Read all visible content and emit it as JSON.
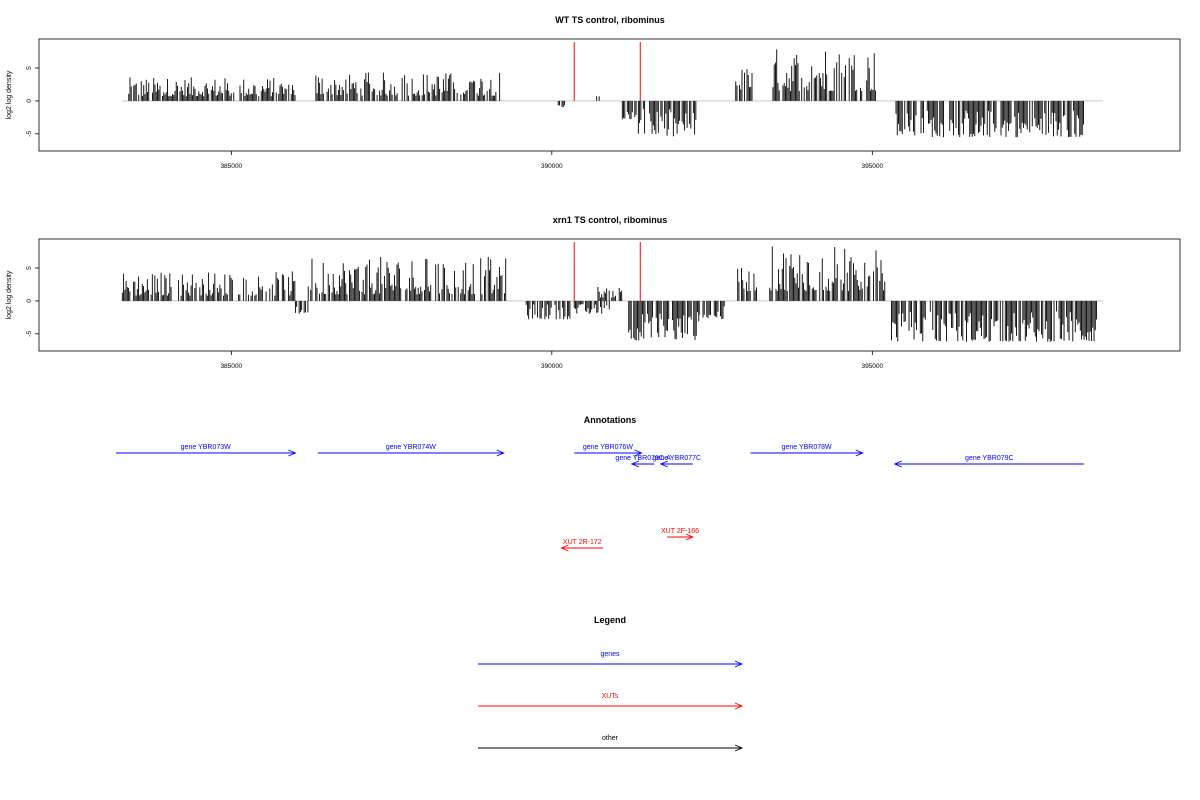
{
  "colors": {
    "gene": "#0000ff",
    "xut": "#ff0000",
    "other": "#000000",
    "bars": "#000000",
    "marker": "#ff0000",
    "baseline": "#bfbfbf"
  },
  "chart_data": [
    {
      "type": "bar",
      "title": "WT TS control, ribominus",
      "ylabel": "log2 log density",
      "xlim": [
        382000,
        399800
      ],
      "ylim": [
        -7,
        8.8
      ],
      "xticks": [
        385000,
        390000,
        395000
      ],
      "yticks": [
        -5,
        0,
        5
      ],
      "markers": [
        390350,
        391380
      ],
      "segments": [
        {
          "from": 383400,
          "to": 386000,
          "min": 0.7,
          "max": 3.6,
          "sign": 1
        },
        {
          "from": 386300,
          "to": 389200,
          "min": 0.8,
          "max": 4.4,
          "sign": 1
        },
        {
          "from": 390100,
          "to": 390200,
          "min": -1.0,
          "max": -0.6,
          "sign": -1
        },
        {
          "from": 390700,
          "to": 390750,
          "min": 0.6,
          "max": 0.9,
          "sign": 1
        },
        {
          "from": 391100,
          "to": 391350,
          "min": -2.8,
          "max": -1.2,
          "sign": -1
        },
        {
          "from": 391350,
          "to": 392250,
          "min": -5.5,
          "max": -1.2,
          "sign": -1
        },
        {
          "from": 392850,
          "to": 393150,
          "min": 1.5,
          "max": 5.2,
          "sign": 1
        },
        {
          "from": 393450,
          "to": 395050,
          "min": 1.5,
          "max": 8.2,
          "sign": 1
        },
        {
          "from": 395350,
          "to": 398300,
          "min": -5.5,
          "max": -1.2,
          "sign": -1
        }
      ]
    },
    {
      "type": "bar",
      "title": "xrn1 TS control, ribominus",
      "ylabel": "log2 log density",
      "xlim": [
        382000,
        399800
      ],
      "ylim": [
        -7,
        8.8
      ],
      "xticks": [
        385000,
        390000,
        395000
      ],
      "yticks": [
        -5,
        0,
        5
      ],
      "markers": [
        390350,
        391380
      ],
      "segments": [
        {
          "from": 383300,
          "to": 386000,
          "min": 0.8,
          "max": 4.5,
          "sign": 1
        },
        {
          "from": 386000,
          "to": 386200,
          "min": -2.0,
          "max": -0.8,
          "sign": -1
        },
        {
          "from": 386200,
          "to": 389300,
          "min": 1.0,
          "max": 6.8,
          "sign": 1
        },
        {
          "from": 389600,
          "to": 390300,
          "min": -2.8,
          "max": -0.4,
          "sign": -1
        },
        {
          "from": 390350,
          "to": 390900,
          "min": -2.0,
          "max": -0.4,
          "sign": -1
        },
        {
          "from": 390700,
          "to": 391100,
          "min": 0.5,
          "max": 2.3,
          "sign": 1
        },
        {
          "from": 391200,
          "to": 392300,
          "min": -6.0,
          "max": -1.5,
          "sign": -1
        },
        {
          "from": 392300,
          "to": 392700,
          "min": -2.8,
          "max": -0.8,
          "sign": -1
        },
        {
          "from": 392900,
          "to": 393200,
          "min": 1.5,
          "max": 5.0,
          "sign": 1
        },
        {
          "from": 393400,
          "to": 395200,
          "min": 1.5,
          "max": 8.4,
          "sign": 1
        },
        {
          "from": 395300,
          "to": 398500,
          "min": -6.2,
          "max": -1.5,
          "sign": -1
        }
      ]
    }
  ],
  "annotations": {
    "title": "Annotations",
    "features": [
      {
        "label": "gene YBR073W",
        "kind": "gene",
        "start": 383200,
        "end": 386000,
        "row": 0
      },
      {
        "label": "gene YBR074W",
        "kind": "gene",
        "start": 386350,
        "end": 389250,
        "row": 0
      },
      {
        "label": "gene YBR076W",
        "kind": "gene",
        "start": 390350,
        "end": 391400,
        "row": 0
      },
      {
        "label": "gene YBR076C-A",
        "kind": "gene",
        "start": 391600,
        "end": 391250,
        "row": 1
      },
      {
        "label": "gene YBR077C",
        "kind": "gene",
        "start": 392200,
        "end": 391700,
        "row": 1
      },
      {
        "label": "gene YBR078W",
        "kind": "gene",
        "start": 393100,
        "end": 394850,
        "row": 0
      },
      {
        "label": "gene YBR079C",
        "kind": "gene",
        "start": 398300,
        "end": 395350,
        "row": 1
      },
      {
        "label": "XUT 2R-172",
        "kind": "xut",
        "start": 390800,
        "end": 390150,
        "row": 3
      },
      {
        "label": "XUT 2F-166",
        "kind": "xut",
        "start": 391800,
        "end": 392200,
        "row": 2
      }
    ]
  },
  "legend": {
    "title": "Legend",
    "items": [
      {
        "label": "genes",
        "kind": "gene"
      },
      {
        "label": "XUTs",
        "kind": "xut"
      },
      {
        "label": "other",
        "kind": "other"
      }
    ]
  }
}
